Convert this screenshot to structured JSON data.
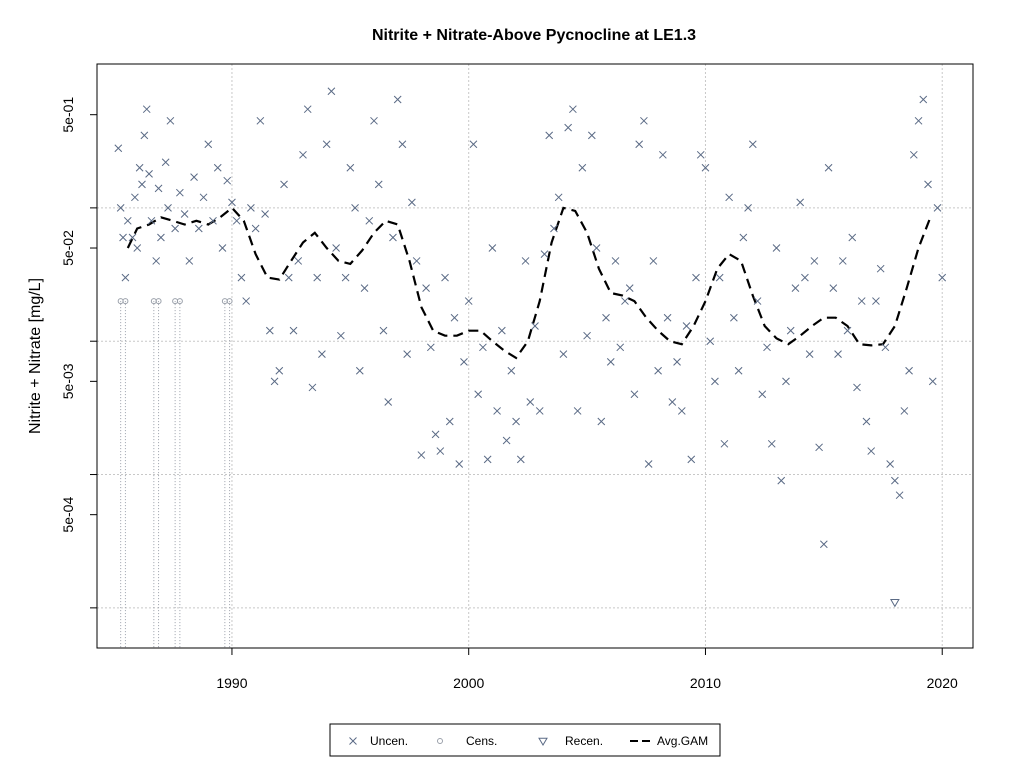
{
  "chart_data": {
    "type": "scatter",
    "title": "Nitrite + Nitrate-Above Pycnocline at LE1.3",
    "xlabel": "",
    "ylabel": "Nitrite + Nitrate [mg/L]",
    "log_y": true,
    "xlim": [
      1984.3,
      2021.3
    ],
    "ylim": [
      5e-05,
      1.2
    ],
    "x_ticks": [
      1990,
      2000,
      2010,
      2020
    ],
    "x_tick_labels": [
      "1990",
      "2000",
      "2010",
      "2020"
    ],
    "y_ticks": [
      0.0005,
      0.005,
      0.05,
      0.5
    ],
    "y_tick_labels": [
      "5e-04",
      "5e-03",
      "5e-02",
      "5e-01"
    ],
    "grid": {
      "x": [
        1990,
        2000,
        2010,
        2020
      ],
      "y": [
        0.0001,
        0.001,
        0.01,
        0.1
      ]
    },
    "colors": {
      "uncensored": "#5a6a85",
      "censored": "#9aa0aa",
      "recensored": "#5a6a85",
      "gam": "#000000",
      "grid": "#c8c8c8"
    },
    "legend": {
      "placement": "bottom",
      "items": [
        {
          "label": "Uncen.",
          "symbol": "x"
        },
        {
          "label": "Cens.",
          "symbol": "circle"
        },
        {
          "label": "Recen.",
          "symbol": "triangle-down"
        },
        {
          "label": "Avg.GAM",
          "symbol": "dashed-line"
        }
      ]
    },
    "series": [
      {
        "name": "Uncen.",
        "symbol": "x",
        "points": [
          [
            1985.2,
            0.28
          ],
          [
            1985.3,
            0.1
          ],
          [
            1985.4,
            0.06
          ],
          [
            1985.5,
            0.03
          ],
          [
            1985.6,
            0.08
          ],
          [
            1985.8,
            0.06
          ],
          [
            1985.9,
            0.12
          ],
          [
            1986.0,
            0.05
          ],
          [
            1986.1,
            0.2
          ],
          [
            1986.2,
            0.15
          ],
          [
            1986.3,
            0.35
          ],
          [
            1986.4,
            0.55
          ],
          [
            1986.5,
            0.18
          ],
          [
            1986.6,
            0.08
          ],
          [
            1986.8,
            0.04
          ],
          [
            1986.9,
            0.14
          ],
          [
            1987.0,
            0.06
          ],
          [
            1987.2,
            0.22
          ],
          [
            1987.3,
            0.1
          ],
          [
            1987.4,
            0.45
          ],
          [
            1987.6,
            0.07
          ],
          [
            1987.8,
            0.13
          ],
          [
            1988.0,
            0.09
          ],
          [
            1988.2,
            0.04
          ],
          [
            1988.4,
            0.17
          ],
          [
            1988.6,
            0.07
          ],
          [
            1988.8,
            0.12
          ],
          [
            1989.0,
            0.3
          ],
          [
            1989.2,
            0.08
          ],
          [
            1989.4,
            0.2
          ],
          [
            1989.6,
            0.05
          ],
          [
            1989.8,
            0.16
          ],
          [
            1990.0,
            0.11
          ],
          [
            1990.2,
            0.08
          ],
          [
            1990.4,
            0.03
          ],
          [
            1990.6,
            0.02
          ],
          [
            1990.8,
            0.1
          ],
          [
            1991.0,
            0.07
          ],
          [
            1991.2,
            0.45
          ],
          [
            1991.4,
            0.09
          ],
          [
            1991.6,
            0.012
          ],
          [
            1991.8,
            0.005
          ],
          [
            1992.0,
            0.006
          ],
          [
            1992.2,
            0.15
          ],
          [
            1992.4,
            0.03
          ],
          [
            1992.6,
            0.012
          ],
          [
            1992.8,
            0.04
          ],
          [
            1993.0,
            0.25
          ],
          [
            1993.2,
            0.55
          ],
          [
            1993.4,
            0.0045
          ],
          [
            1993.6,
            0.03
          ],
          [
            1993.8,
            0.008
          ],
          [
            1994.0,
            0.3
          ],
          [
            1994.2,
            0.75
          ],
          [
            1994.4,
            0.05
          ],
          [
            1994.6,
            0.011
          ],
          [
            1994.8,
            0.03
          ],
          [
            1995.0,
            0.2
          ],
          [
            1995.2,
            0.1
          ],
          [
            1995.4,
            0.006
          ],
          [
            1995.6,
            0.025
          ],
          [
            1995.8,
            0.08
          ],
          [
            1996.0,
            0.45
          ],
          [
            1996.2,
            0.15
          ],
          [
            1996.4,
            0.012
          ],
          [
            1996.6,
            0.0035
          ],
          [
            1996.8,
            0.06
          ],
          [
            1997.0,
            0.65
          ],
          [
            1997.2,
            0.3
          ],
          [
            1997.4,
            0.008
          ],
          [
            1997.6,
            0.11
          ],
          [
            1997.8,
            0.04
          ],
          [
            1998.0,
            0.0014
          ],
          [
            1998.2,
            0.025
          ],
          [
            1998.4,
            0.009
          ],
          [
            1998.6,
            0.002
          ],
          [
            1998.8,
            0.0015
          ],
          [
            1999.0,
            0.03
          ],
          [
            1999.2,
            0.0025
          ],
          [
            1999.4,
            0.015
          ],
          [
            1999.6,
            0.0012
          ],
          [
            1999.8,
            0.007
          ],
          [
            2000.0,
            0.02
          ],
          [
            2000.2,
            0.3
          ],
          [
            2000.4,
            0.004
          ],
          [
            2000.6,
            0.009
          ],
          [
            2000.8,
            0.0013
          ],
          [
            2001.0,
            0.05
          ],
          [
            2001.2,
            0.003
          ],
          [
            2001.4,
            0.012
          ],
          [
            2001.6,
            0.0018
          ],
          [
            2001.8,
            0.006
          ],
          [
            2002.0,
            0.0025
          ],
          [
            2002.2,
            0.0013
          ],
          [
            2002.4,
            0.04
          ],
          [
            2002.6,
            0.0035
          ],
          [
            2002.8,
            0.013
          ],
          [
            2003.0,
            0.003
          ],
          [
            2003.2,
            0.045
          ],
          [
            2003.4,
            0.35
          ],
          [
            2003.6,
            0.07
          ],
          [
            2003.8,
            0.12
          ],
          [
            2004.0,
            0.008
          ],
          [
            2004.2,
            0.4
          ],
          [
            2004.4,
            0.55
          ],
          [
            2004.6,
            0.003
          ],
          [
            2004.8,
            0.2
          ],
          [
            2005.0,
            0.011
          ],
          [
            2005.2,
            0.35
          ],
          [
            2005.4,
            0.05
          ],
          [
            2005.6,
            0.0025
          ],
          [
            2005.8,
            0.015
          ],
          [
            2006.0,
            0.007
          ],
          [
            2006.2,
            0.04
          ],
          [
            2006.4,
            0.009
          ],
          [
            2006.6,
            0.02
          ],
          [
            2006.8,
            0.025
          ],
          [
            2007.0,
            0.004
          ],
          [
            2007.2,
            0.3
          ],
          [
            2007.4,
            0.45
          ],
          [
            2007.6,
            0.0012
          ],
          [
            2007.8,
            0.04
          ],
          [
            2008.0,
            0.006
          ],
          [
            2008.2,
            0.25
          ],
          [
            2008.4,
            0.015
          ],
          [
            2008.6,
            0.0035
          ],
          [
            2008.8,
            0.007
          ],
          [
            2009.0,
            0.003
          ],
          [
            2009.2,
            0.013
          ],
          [
            2009.4,
            0.0013
          ],
          [
            2009.6,
            0.03
          ],
          [
            2009.8,
            0.25
          ],
          [
            2010.0,
            0.2
          ],
          [
            2010.2,
            0.01
          ],
          [
            2010.4,
            0.005
          ],
          [
            2010.6,
            0.03
          ],
          [
            2010.8,
            0.0017
          ],
          [
            2011.0,
            0.12
          ],
          [
            2011.2,
            0.015
          ],
          [
            2011.4,
            0.006
          ],
          [
            2011.6,
            0.06
          ],
          [
            2011.8,
            0.1
          ],
          [
            2012.0,
            0.3
          ],
          [
            2012.2,
            0.02
          ],
          [
            2012.4,
            0.004
          ],
          [
            2012.6,
            0.009
          ],
          [
            2012.8,
            0.0017
          ],
          [
            2013.0,
            0.05
          ],
          [
            2013.2,
            0.0009
          ],
          [
            2013.4,
            0.005
          ],
          [
            2013.6,
            0.012
          ],
          [
            2013.8,
            0.025
          ],
          [
            2014.0,
            0.11
          ],
          [
            2014.2,
            0.03
          ],
          [
            2014.4,
            0.008
          ],
          [
            2014.6,
            0.04
          ],
          [
            2014.8,
            0.0016
          ],
          [
            2015.0,
            0.0003
          ],
          [
            2015.2,
            0.2
          ],
          [
            2015.4,
            0.025
          ],
          [
            2015.6,
            0.008
          ],
          [
            2015.8,
            0.04
          ],
          [
            2016.0,
            0.012
          ],
          [
            2016.2,
            0.06
          ],
          [
            2016.4,
            0.0045
          ],
          [
            2016.6,
            0.02
          ],
          [
            2016.8,
            0.0025
          ],
          [
            2017.0,
            0.0015
          ],
          [
            2017.2,
            0.02
          ],
          [
            2017.4,
            0.035
          ],
          [
            2017.6,
            0.009
          ],
          [
            2017.8,
            0.0012
          ],
          [
            2018.0,
            0.0009
          ],
          [
            2018.2,
            0.0007
          ],
          [
            2018.4,
            0.003
          ],
          [
            2018.6,
            0.006
          ],
          [
            2018.8,
            0.25
          ],
          [
            2019.0,
            0.45
          ],
          [
            2019.2,
            0.65
          ],
          [
            2019.4,
            0.15
          ],
          [
            2019.6,
            0.005
          ],
          [
            2019.8,
            0.1
          ],
          [
            2020.0,
            0.03
          ]
        ]
      },
      {
        "name": "Cens.",
        "symbol": "circle",
        "points": [
          [
            1985.3,
            0.02
          ],
          [
            1985.5,
            0.02
          ],
          [
            1986.7,
            0.02
          ],
          [
            1986.9,
            0.02
          ],
          [
            1987.6,
            0.02
          ],
          [
            1987.8,
            0.02
          ],
          [
            1989.7,
            0.02
          ],
          [
            1989.9,
            0.02
          ]
        ]
      },
      {
        "name": "Recen.",
        "symbol": "triangle-down",
        "points": [
          [
            2018.0,
            0.00011
          ]
        ]
      },
      {
        "name": "Avg.GAM",
        "symbol": "dashed-line",
        "points": [
          [
            1985.6,
            0.05
          ],
          [
            1986.0,
            0.07
          ],
          [
            1986.5,
            0.075
          ],
          [
            1987.0,
            0.085
          ],
          [
            1987.5,
            0.08
          ],
          [
            1988.0,
            0.075
          ],
          [
            1988.5,
            0.08
          ],
          [
            1989.0,
            0.075
          ],
          [
            1989.5,
            0.085
          ],
          [
            1990.0,
            0.1
          ],
          [
            1990.5,
            0.08
          ],
          [
            1991.0,
            0.045
          ],
          [
            1991.5,
            0.03
          ],
          [
            1992.0,
            0.029
          ],
          [
            1992.5,
            0.04
          ],
          [
            1993.0,
            0.055
          ],
          [
            1993.5,
            0.065
          ],
          [
            1994.0,
            0.05
          ],
          [
            1994.5,
            0.04
          ],
          [
            1995.0,
            0.038
          ],
          [
            1995.5,
            0.048
          ],
          [
            1996.0,
            0.065
          ],
          [
            1996.5,
            0.08
          ],
          [
            1997.0,
            0.075
          ],
          [
            1997.5,
            0.04
          ],
          [
            1998.0,
            0.018
          ],
          [
            1998.5,
            0.012
          ],
          [
            1999.0,
            0.011
          ],
          [
            1999.5,
            0.011
          ],
          [
            2000.0,
            0.012
          ],
          [
            2000.5,
            0.012
          ],
          [
            2001.0,
            0.01
          ],
          [
            2001.5,
            0.0085
          ],
          [
            2002.0,
            0.0075
          ],
          [
            2002.5,
            0.01
          ],
          [
            2003.0,
            0.02
          ],
          [
            2003.5,
            0.055
          ],
          [
            2004.0,
            0.1
          ],
          [
            2004.5,
            0.095
          ],
          [
            2005.0,
            0.065
          ],
          [
            2005.5,
            0.035
          ],
          [
            2006.0,
            0.023
          ],
          [
            2006.5,
            0.022
          ],
          [
            2007.0,
            0.02
          ],
          [
            2007.5,
            0.015
          ],
          [
            2008.0,
            0.012
          ],
          [
            2008.5,
            0.01
          ],
          [
            2009.0,
            0.0095
          ],
          [
            2009.5,
            0.013
          ],
          [
            2010.0,
            0.02
          ],
          [
            2010.5,
            0.035
          ],
          [
            2011.0,
            0.045
          ],
          [
            2011.5,
            0.04
          ],
          [
            2012.0,
            0.022
          ],
          [
            2012.5,
            0.013
          ],
          [
            2013.0,
            0.0105
          ],
          [
            2013.5,
            0.0095
          ],
          [
            2014.0,
            0.011
          ],
          [
            2014.5,
            0.013
          ],
          [
            2015.0,
            0.015
          ],
          [
            2015.5,
            0.015
          ],
          [
            2016.0,
            0.013
          ],
          [
            2016.5,
            0.0095
          ],
          [
            2017.0,
            0.0093
          ],
          [
            2017.5,
            0.0095
          ],
          [
            2018.0,
            0.013
          ],
          [
            2018.5,
            0.025
          ],
          [
            2019.0,
            0.05
          ],
          [
            2019.5,
            0.085
          ]
        ]
      }
    ]
  }
}
